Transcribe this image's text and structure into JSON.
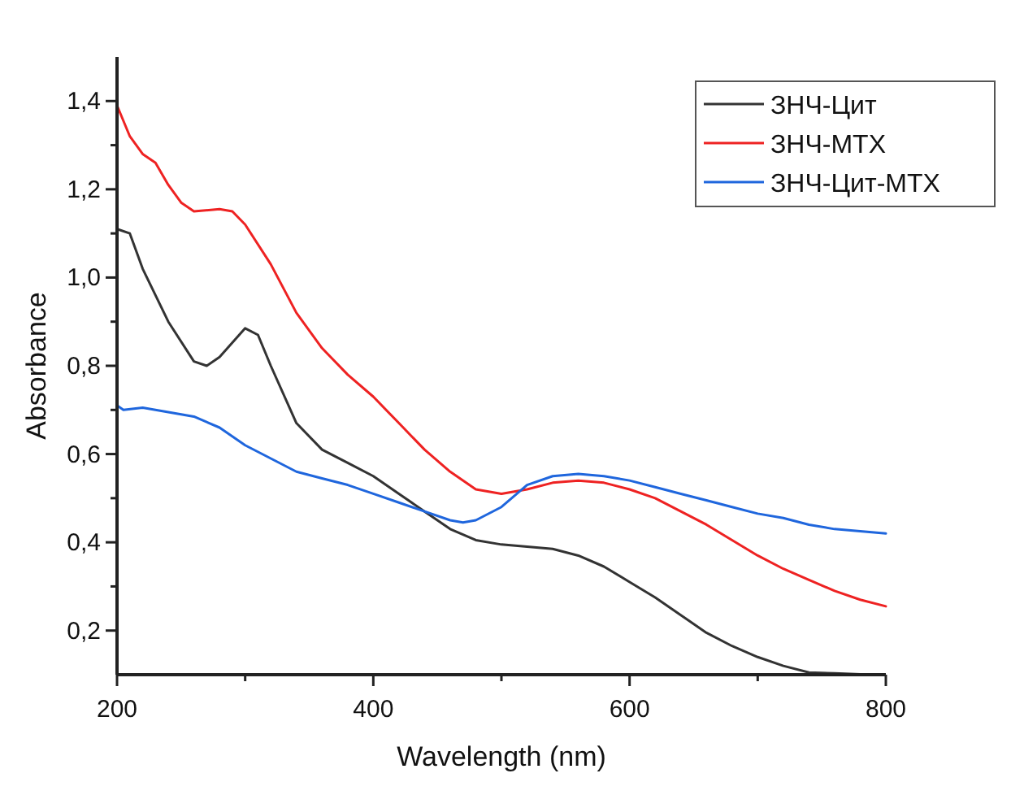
{
  "chart_data": {
    "type": "line",
    "xlabel": "Wavelength (nm)",
    "ylabel": "Absorbance",
    "xlim": [
      200,
      800
    ],
    "ylim": [
      0.1,
      1.5
    ],
    "xticks": [
      200,
      {
        "value": 300,
        "label": null
      },
      400,
      {
        "value": 500,
        "label": null
      },
      600,
      {
        "value": 700,
        "label": null
      },
      800
    ],
    "yticks": [
      {
        "value": 0.2,
        "label": "0,2"
      },
      {
        "value": 0.3,
        "label": null
      },
      {
        "value": 0.4,
        "label": "0,4"
      },
      {
        "value": 0.5,
        "label": null
      },
      {
        "value": 0.6,
        "label": "0,6"
      },
      {
        "value": 0.7,
        "label": null
      },
      {
        "value": 0.8,
        "label": "0,8"
      },
      {
        "value": 0.9,
        "label": null
      },
      {
        "value": 1.0,
        "label": "1,0"
      },
      {
        "value": 1.1,
        "label": null
      },
      {
        "value": 1.2,
        "label": "1,2"
      },
      {
        "value": 1.3,
        "label": null
      },
      {
        "value": 1.4,
        "label": "1,4"
      }
    ],
    "grid": false,
    "legend": "top right",
    "marker": "none",
    "line_style": "solid",
    "series": [
      {
        "name": "ЗНЧ-Цит",
        "color": "#333333",
        "x": [
          200,
          210,
          220,
          240,
          260,
          270,
          280,
          300,
          310,
          320,
          340,
          360,
          380,
          400,
          420,
          440,
          460,
          480,
          500,
          520,
          540,
          560,
          580,
          600,
          620,
          640,
          660,
          680,
          700,
          720,
          740,
          760,
          780
        ],
        "values": [
          1.11,
          1.1,
          1.02,
          0.9,
          0.81,
          0.8,
          0.82,
          0.885,
          0.87,
          0.8,
          0.67,
          0.61,
          0.58,
          0.55,
          0.51,
          0.47,
          0.43,
          0.405,
          0.395,
          0.39,
          0.385,
          0.37,
          0.345,
          0.31,
          0.275,
          0.235,
          0.195,
          0.165,
          0.14,
          0.12,
          0.105,
          0.103,
          0.101
        ]
      },
      {
        "name": "ЗНЧ-МТХ",
        "color": "#ee2222",
        "x": [
          200,
          210,
          220,
          230,
          240,
          250,
          260,
          280,
          290,
          300,
          320,
          340,
          360,
          380,
          400,
          420,
          440,
          460,
          480,
          500,
          520,
          540,
          560,
          580,
          600,
          620,
          640,
          660,
          680,
          700,
          720,
          740,
          760,
          780,
          800
        ],
        "values": [
          1.39,
          1.32,
          1.28,
          1.26,
          1.21,
          1.17,
          1.15,
          1.155,
          1.15,
          1.12,
          1.03,
          0.92,
          0.84,
          0.78,
          0.73,
          0.67,
          0.61,
          0.56,
          0.52,
          0.51,
          0.52,
          0.535,
          0.54,
          0.535,
          0.52,
          0.5,
          0.47,
          0.44,
          0.405,
          0.37,
          0.34,
          0.315,
          0.29,
          0.27,
          0.255
        ]
      },
      {
        "name": "ЗНЧ-Цит-МТХ",
        "color": "#1f66dd",
        "x": [
          200,
          205,
          220,
          240,
          260,
          280,
          300,
          320,
          340,
          360,
          380,
          400,
          420,
          440,
          460,
          470,
          480,
          500,
          520,
          540,
          560,
          580,
          600,
          620,
          640,
          660,
          680,
          700,
          720,
          740,
          760,
          780,
          800
        ],
        "values": [
          0.71,
          0.7,
          0.705,
          0.695,
          0.685,
          0.66,
          0.62,
          0.59,
          0.56,
          0.545,
          0.53,
          0.51,
          0.49,
          0.47,
          0.45,
          0.445,
          0.45,
          0.48,
          0.53,
          0.55,
          0.555,
          0.55,
          0.54,
          0.525,
          0.51,
          0.495,
          0.48,
          0.465,
          0.455,
          0.44,
          0.43,
          0.425,
          0.42
        ]
      }
    ]
  }
}
